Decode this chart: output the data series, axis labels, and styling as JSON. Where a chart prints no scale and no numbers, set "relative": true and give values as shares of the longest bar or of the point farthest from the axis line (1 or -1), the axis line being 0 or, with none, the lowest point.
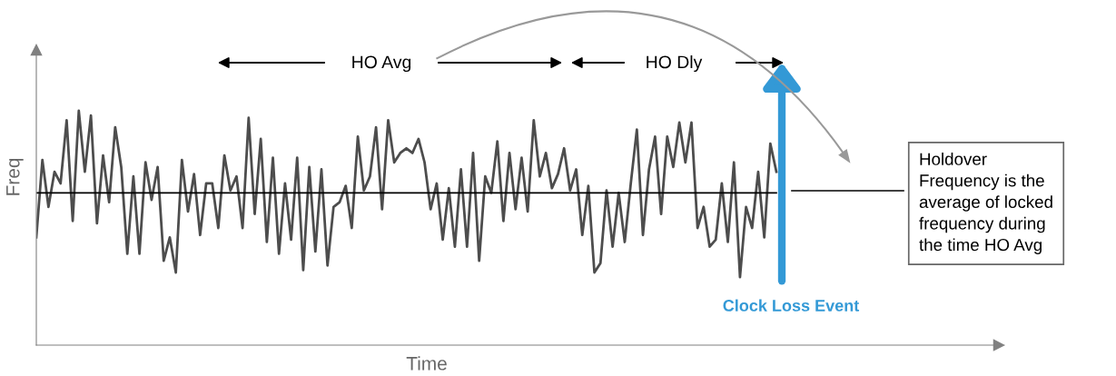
{
  "chart_data": {
    "type": "line",
    "xlabel": "Time",
    "ylabel": "Freq",
    "relative": true,
    "marker": "none",
    "line_style": "solid",
    "categories": [
      null,
      null,
      null,
      null,
      null,
      null,
      null,
      null,
      null,
      null,
      null,
      null,
      null,
      null,
      null,
      null,
      null,
      null,
      null,
      null,
      null,
      null,
      null,
      null,
      null,
      null,
      null,
      null,
      null,
      null,
      null,
      null,
      null,
      null,
      null,
      null,
      null,
      null,
      null,
      null,
      null,
      null,
      null,
      null,
      null,
      null,
      null,
      null,
      null,
      null,
      null,
      null,
      null,
      null,
      null,
      null,
      null,
      null,
      null,
      null,
      null,
      null,
      null,
      null,
      null,
      null,
      null,
      null,
      null,
      null,
      null,
      null,
      null,
      null,
      null,
      null,
      null,
      null,
      null,
      null,
      null,
      null,
      null,
      null,
      null,
      null,
      null,
      null,
      null,
      null,
      null,
      null,
      null,
      null,
      null,
      null,
      null,
      null,
      null,
      null,
      null,
      null,
      null,
      null,
      null,
      null,
      null,
      null,
      null,
      null,
      null,
      null,
      null,
      null,
      null,
      null,
      null,
      null,
      null,
      null,
      null,
      null,
      null
    ],
    "series": [
      {
        "color": "#4d4d4d",
        "values": [
          0.46,
          0.79,
          0.59,
          0.74,
          0.69,
          0.96,
          0.53,
          1,
          0.74,
          0.98,
          0.52,
          0.81,
          0.61,
          0.93,
          0.76,
          0.39,
          0.72,
          0.39,
          0.78,
          0.62,
          0.76,
          0.36,
          0.46,
          0.31,
          0.79,
          0.57,
          0.73,
          0.47,
          0.69,
          0.69,
          0.5,
          0.81,
          0.66,
          0.72,
          0.5,
          0.97,
          0.56,
          0.88,
          0.44,
          0.8,
          0.39,
          0.69,
          0.45,
          0.8,
          0.32,
          0.76,
          0.4,
          0.75,
          0.34,
          0.59,
          0.61,
          0.68,
          0.5,
          0.89,
          0.66,
          0.72,
          0.93,
          0.58,
          0.96,
          0.78,
          0.82,
          0.84,
          0.82,
          0.88,
          0.78,
          0.58,
          0.69,
          0.45,
          0.67,
          0.42,
          0.75,
          0.42,
          0.82,
          0.36,
          0.72,
          0.65,
          0.87,
          0.53,
          0.82,
          0.58,
          0.8,
          0.57,
          0.96,
          0.72,
          0.82,
          0.67,
          0.73,
          0.84,
          0.66,
          0.75,
          0.47,
          0.68,
          0.31,
          0.35,
          0.66,
          0.42,
          0.65,
          0.44,
          0.69,
          0.92,
          0.47,
          0.75,
          0.89,
          0.56,
          0.89,
          0.76,
          0.95,
          0.78,
          0.95,
          0.5,
          0.59,
          0.42,
          0.45,
          0.69,
          0.44,
          0.78,
          0.29,
          0.59,
          0.5,
          0.74,
          0.46,
          0.86,
          0.74
        ]
      }
    ],
    "ref_lines": [
      {
        "axis": "y",
        "value": 0.65,
        "color": "#000000"
      }
    ],
    "annotations": [
      "HO Avg",
      "HO Dly",
      "Clock Loss Event",
      "Holdover Frequency is the average of locked frequency during the time HO Avg"
    ]
  }
}
